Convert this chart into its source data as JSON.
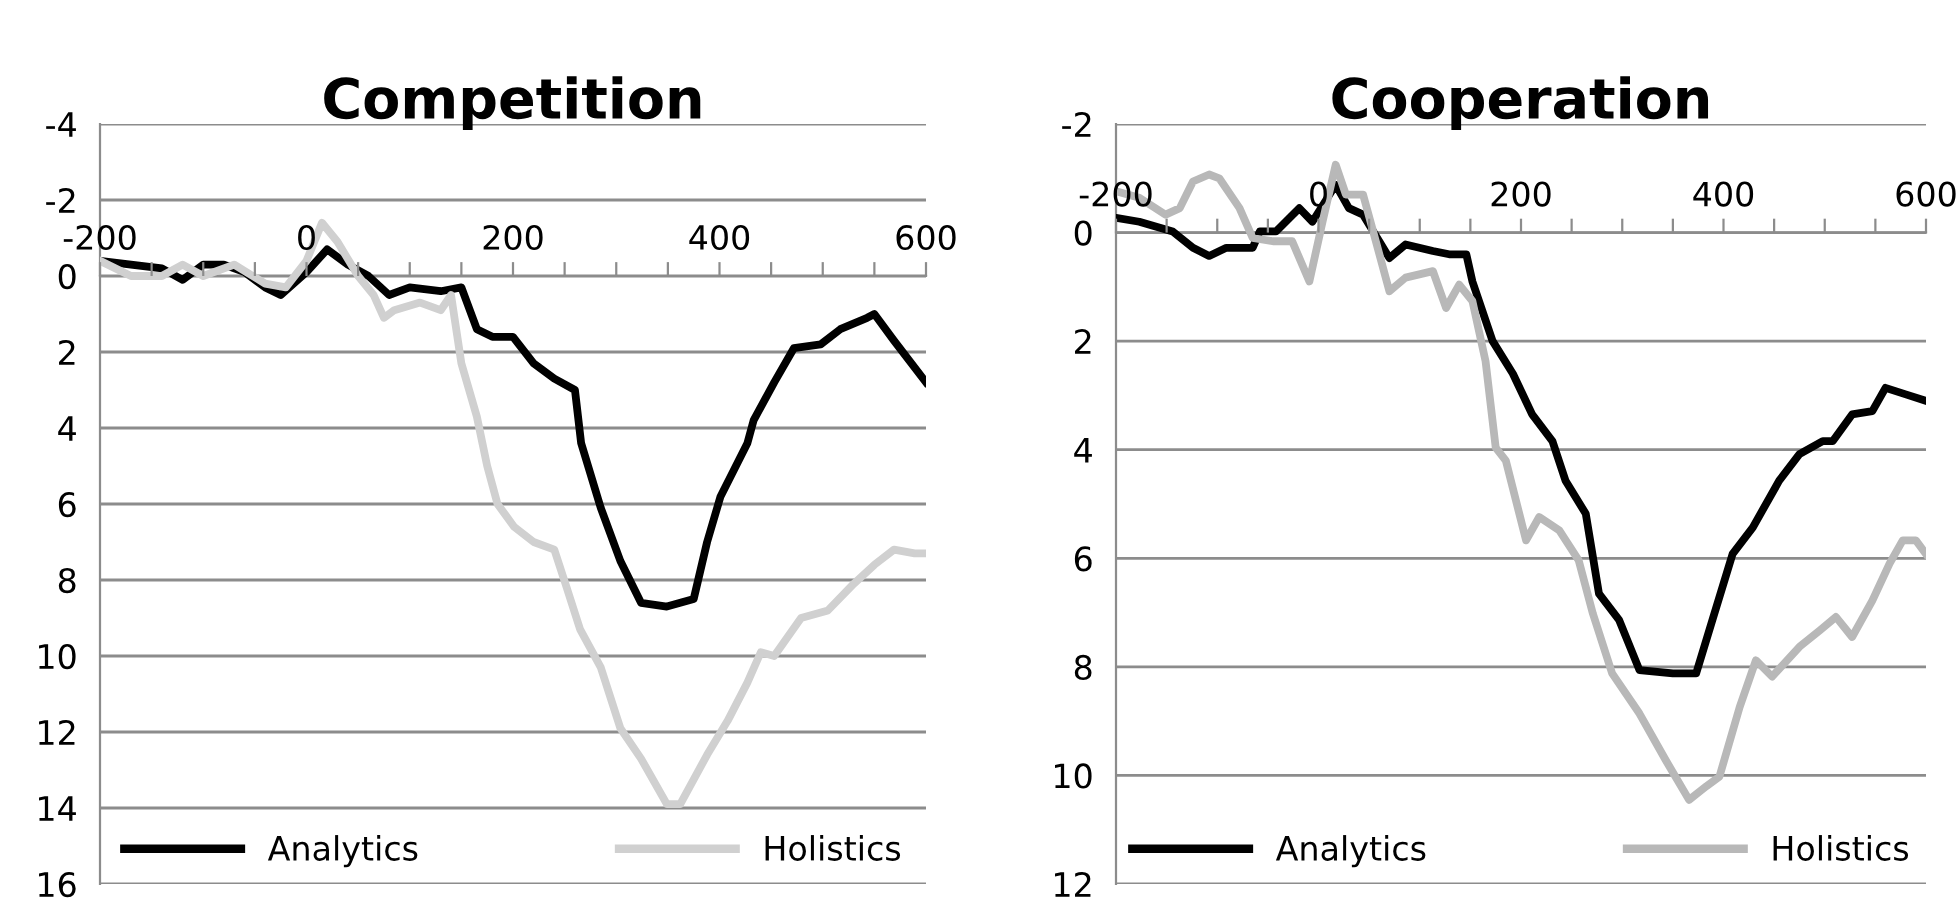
{
  "chart_data": [
    {
      "type": "line",
      "title": "Competition",
      "xlim": [
        -200,
        600
      ],
      "ylim": [
        16,
        -4
      ],
      "xticks": [
        -200,
        {
          "value": -150,
          "label": null
        },
        {
          "value": -100,
          "label": null
        },
        {
          "value": -50,
          "label": null
        },
        0,
        {
          "value": 50,
          "label": null
        },
        {
          "value": 100,
          "label": null
        },
        {
          "value": 150,
          "label": null
        },
        200,
        {
          "value": 250,
          "label": null
        },
        {
          "value": 300,
          "label": null
        },
        {
          "value": 350,
          "label": null
        },
        400,
        {
          "value": 450,
          "label": null
        },
        {
          "value": 500,
          "label": null
        },
        {
          "value": 550,
          "label": null
        },
        600
      ],
      "yticks": [
        -4,
        -2,
        0,
        2,
        4,
        6,
        8,
        10,
        12,
        14,
        16
      ],
      "grid": "y",
      "legend": "bottom",
      "marker": "none",
      "line_style": "solid",
      "series": [
        {
          "name": "Analytics",
          "color": "#000000",
          "x": [
            -200,
            -170,
            -140,
            -120,
            -100,
            -80,
            -60,
            -40,
            -25,
            0,
            20,
            40,
            60,
            80,
            100,
            130,
            150,
            165,
            180,
            200,
            220,
            240,
            260,
            266,
            285,
            304,
            324,
            349,
            375,
            388,
            401,
            427,
            433,
            453,
            472,
            498,
            517,
            543,
            550,
            569,
            600
          ],
          "values": [
            -0.4,
            -0.3,
            -0.2,
            0.1,
            -0.3,
            -0.3,
            -0.1,
            0.3,
            0.5,
            -0.1,
            -0.7,
            -0.3,
            0.0,
            0.5,
            0.3,
            0.4,
            0.3,
            1.4,
            1.6,
            1.6,
            2.3,
            2.7,
            3.0,
            4.4,
            6.1,
            7.5,
            8.6,
            8.7,
            8.5,
            7.0,
            5.8,
            4.4,
            3.8,
            2.8,
            1.9,
            1.8,
            1.4,
            1.1,
            1.0,
            1.7,
            2.8
          ]
        },
        {
          "name": "Holistics",
          "color": "#d0d0d0",
          "x": [
            -200,
            -170,
            -140,
            -120,
            -100,
            -70,
            -40,
            -20,
            0,
            15,
            30,
            50,
            65,
            75,
            85,
            110,
            130,
            140,
            150,
            165,
            175,
            185,
            201,
            220,
            240,
            252,
            265,
            285,
            304,
            324,
            349,
            362,
            388,
            408,
            427,
            440,
            453,
            479,
            505,
            530,
            550,
            569,
            589,
            600
          ],
          "values": [
            -0.4,
            0.0,
            0.0,
            -0.3,
            0.0,
            -0.3,
            0.2,
            0.3,
            -0.4,
            -1.4,
            -0.9,
            0.0,
            0.5,
            1.1,
            0.9,
            0.7,
            0.9,
            0.5,
            2.3,
            3.7,
            5.0,
            6.0,
            6.6,
            7.0,
            7.2,
            8.2,
            9.3,
            10.3,
            11.9,
            12.7,
            13.9,
            13.9,
            12.6,
            11.7,
            10.7,
            9.9,
            10.0,
            9.0,
            8.8,
            8.1,
            7.6,
            7.2,
            7.3,
            7.3
          ]
        }
      ]
    },
    {
      "type": "line",
      "title": "Cooperation",
      "xlim": [
        -200,
        600
      ],
      "ylim": [
        12,
        -2
      ],
      "xticks": [
        -200,
        {
          "value": -150,
          "label": null
        },
        {
          "value": -100,
          "label": null
        },
        {
          "value": -50,
          "label": null
        },
        0,
        {
          "value": 50,
          "label": null
        },
        {
          "value": 100,
          "label": null
        },
        {
          "value": 150,
          "label": null
        },
        200,
        {
          "value": 250,
          "label": null
        },
        {
          "value": 300,
          "label": null
        },
        {
          "value": 350,
          "label": null
        },
        400,
        {
          "value": 450,
          "label": null
        },
        {
          "value": 500,
          "label": null
        },
        {
          "value": 550,
          "label": null
        },
        600
      ],
      "yticks": [
        -2,
        0,
        2,
        4,
        6,
        8,
        10,
        12
      ],
      "grid": "y",
      "legend": "bottom",
      "marker": "none",
      "line_style": "solid",
      "series": [
        {
          "name": "Analytics",
          "color": "#000000",
          "x": [
            -200,
            -177,
            -144,
            -124,
            -108,
            -91,
            -65,
            -58,
            -42,
            -19,
            -6,
            17,
            30,
            44,
            60,
            70,
            86,
            113,
            129,
            146,
            152,
            172,
            192,
            211,
            231,
            244,
            264,
            277,
            297,
            317,
            350,
            373,
            389,
            409,
            429,
            455,
            475,
            498,
            508,
            527,
            547,
            560,
            580,
            600
          ],
          "values": [
            -0.27,
            -0.2,
            -0.02,
            0.28,
            0.43,
            0.28,
            0.28,
            -0.02,
            -0.02,
            -0.45,
            -0.2,
            -0.88,
            -0.45,
            -0.33,
            0.16,
            0.47,
            0.22,
            0.34,
            0.4,
            0.4,
            0.9,
            2.0,
            2.6,
            3.35,
            3.84,
            4.57,
            5.18,
            6.65,
            7.14,
            8.06,
            8.12,
            8.12,
            7.14,
            5.92,
            5.43,
            4.57,
            4.08,
            3.84,
            3.84,
            3.35,
            3.29,
            2.86,
            2.98,
            3.1
          ]
        },
        {
          "name": "Holistics",
          "color": "#b8b8b8",
          "x": [
            -200,
            -177,
            -151,
            -137,
            -124,
            -108,
            -98,
            -78,
            -65,
            -45,
            -26,
            -9,
            4,
            17,
            27,
            44,
            53,
            70,
            86,
            113,
            126,
            139,
            152,
            165,
            175,
            185,
            205,
            218,
            238,
            257,
            271,
            290,
            317,
            343,
            366,
            383,
            396,
            416,
            432,
            448,
            475,
            495,
            511,
            527,
            547,
            564,
            577,
            590,
            600
          ],
          "values": [
            -0.76,
            -0.64,
            -0.33,
            -0.45,
            -0.94,
            -1.07,
            -1.0,
            -0.45,
            0.1,
            0.16,
            0.16,
            0.9,
            -0.2,
            -1.25,
            -0.7,
            -0.7,
            -0.09,
            1.08,
            0.83,
            0.71,
            1.39,
            0.96,
            1.26,
            2.37,
            3.96,
            4.2,
            5.67,
            5.24,
            5.49,
            6.04,
            7.02,
            8.12,
            8.86,
            9.72,
            10.45,
            10.2,
            10.02,
            8.74,
            7.88,
            8.18,
            7.63,
            7.33,
            7.08,
            7.45,
            6.78,
            6.1,
            5.67,
            5.67,
            5.92
          ]
        }
      ]
    }
  ]
}
